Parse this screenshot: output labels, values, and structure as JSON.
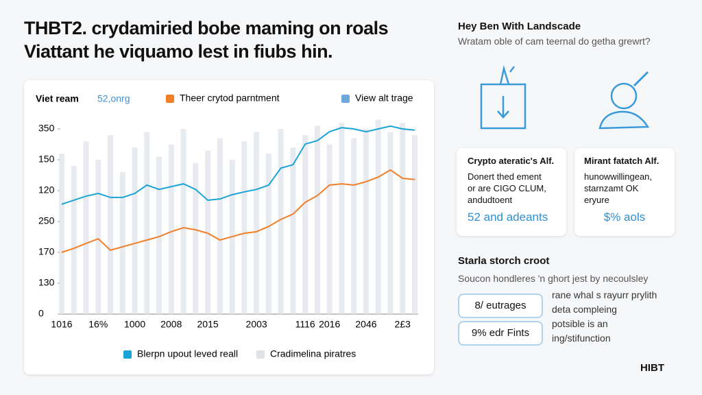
{
  "header": {
    "line1": "THBT2. crydamiried bobe maming on roals",
    "line2": "Viattant he viquamo lest in fiubs hin."
  },
  "chart_data": {
    "type": "line",
    "title": "Viet ream",
    "subtitle": "52,onrg",
    "categories": [
      "1016",
      null,
      null,
      "16%",
      null,
      null,
      "1000",
      null,
      null,
      "2008",
      null,
      null,
      "2015",
      null,
      null,
      null,
      "2003",
      null,
      null,
      null,
      "1116",
      null,
      "2016",
      null,
      null,
      "2046",
      null,
      null,
      "2£3",
      null
    ],
    "series": [
      {
        "name": "Cradimelina piratres",
        "kind": "bar",
        "color": "#dfe3e8",
        "values": [
          5.2,
          4.8,
          5.6,
          5.0,
          5.8,
          4.6,
          5.4,
          5.9,
          5.1,
          5.5,
          6.0,
          4.9,
          5.3,
          5.7,
          5.0,
          5.6,
          5.9,
          5.2,
          6.0,
          5.4,
          5.8,
          6.1,
          5.5,
          6.2,
          5.7,
          6.0,
          6.3,
          5.9,
          6.2,
          5.8
        ]
      },
      {
        "name": "Blerpn upout leved reall",
        "kind": "line",
        "color": "#1ba3d6",
        "values": [
          3.56,
          3.69,
          3.82,
          3.91,
          3.78,
          3.78,
          3.91,
          4.18,
          4.04,
          4.13,
          4.22,
          4.04,
          3.69,
          3.73,
          3.87,
          3.96,
          4.04,
          4.18,
          4.73,
          4.84,
          5.51,
          5.62,
          5.91,
          6.04,
          6.0,
          5.91,
          6.0,
          6.09,
          6.0,
          5.96
        ]
      },
      {
        "name": "Theer crytod parntment",
        "kind": "line",
        "color": "#f07f2a",
        "values": [
          2.0,
          2.13,
          2.29,
          2.44,
          2.07,
          2.18,
          2.29,
          2.4,
          2.51,
          2.67,
          2.8,
          2.73,
          2.62,
          2.4,
          2.51,
          2.62,
          2.67,
          2.84,
          3.07,
          3.24,
          3.62,
          3.84,
          4.18,
          4.22,
          4.18,
          4.29,
          4.44,
          4.67,
          4.4,
          4.36
        ]
      }
    ],
    "extra_legend": {
      "name": "View alt trage",
      "color": "#6fa8dc"
    },
    "ylim": [
      0,
      6.4
    ],
    "yticks": [
      {
        "value": 0,
        "label": "0"
      },
      {
        "value": 1,
        "label": "130"
      },
      {
        "value": 2,
        "label": "170"
      },
      {
        "value": 3,
        "label": "250"
      },
      {
        "value": 4,
        "label": "120"
      },
      {
        "value": 5,
        "label": "150"
      },
      {
        "value": 6,
        "label": "350"
      }
    ],
    "grid": false
  },
  "sidebar": {
    "title": "Hey Ben With Landscade",
    "subtitle": "Wratam oble of cam teernal do getha grewrt?",
    "cards": [
      {
        "title": "Crypto ateratic's Alf.",
        "lines": [
          "Donert thed ement",
          "or are CIGO CLUM,",
          "andudtoent"
        ],
        "stat": "52 and adeants"
      },
      {
        "title": "Mirant fatatch Alf.",
        "lines": [
          "hunowwillingean,",
          "starnzamt OK",
          "eryure"
        ],
        "stat": "$% aols"
      }
    ],
    "section_title": "Starla storch croot",
    "section_text": "Soucon hondleres 'n ghort jest by necoulsley",
    "badges": [
      "8/ eutrages",
      "9% edr Fints"
    ],
    "notes": [
      "rane whal s rayurr prylith",
      "deta compleing",
      "potsible is an",
      "ing/stifunction"
    ]
  },
  "footer": "HIBT"
}
